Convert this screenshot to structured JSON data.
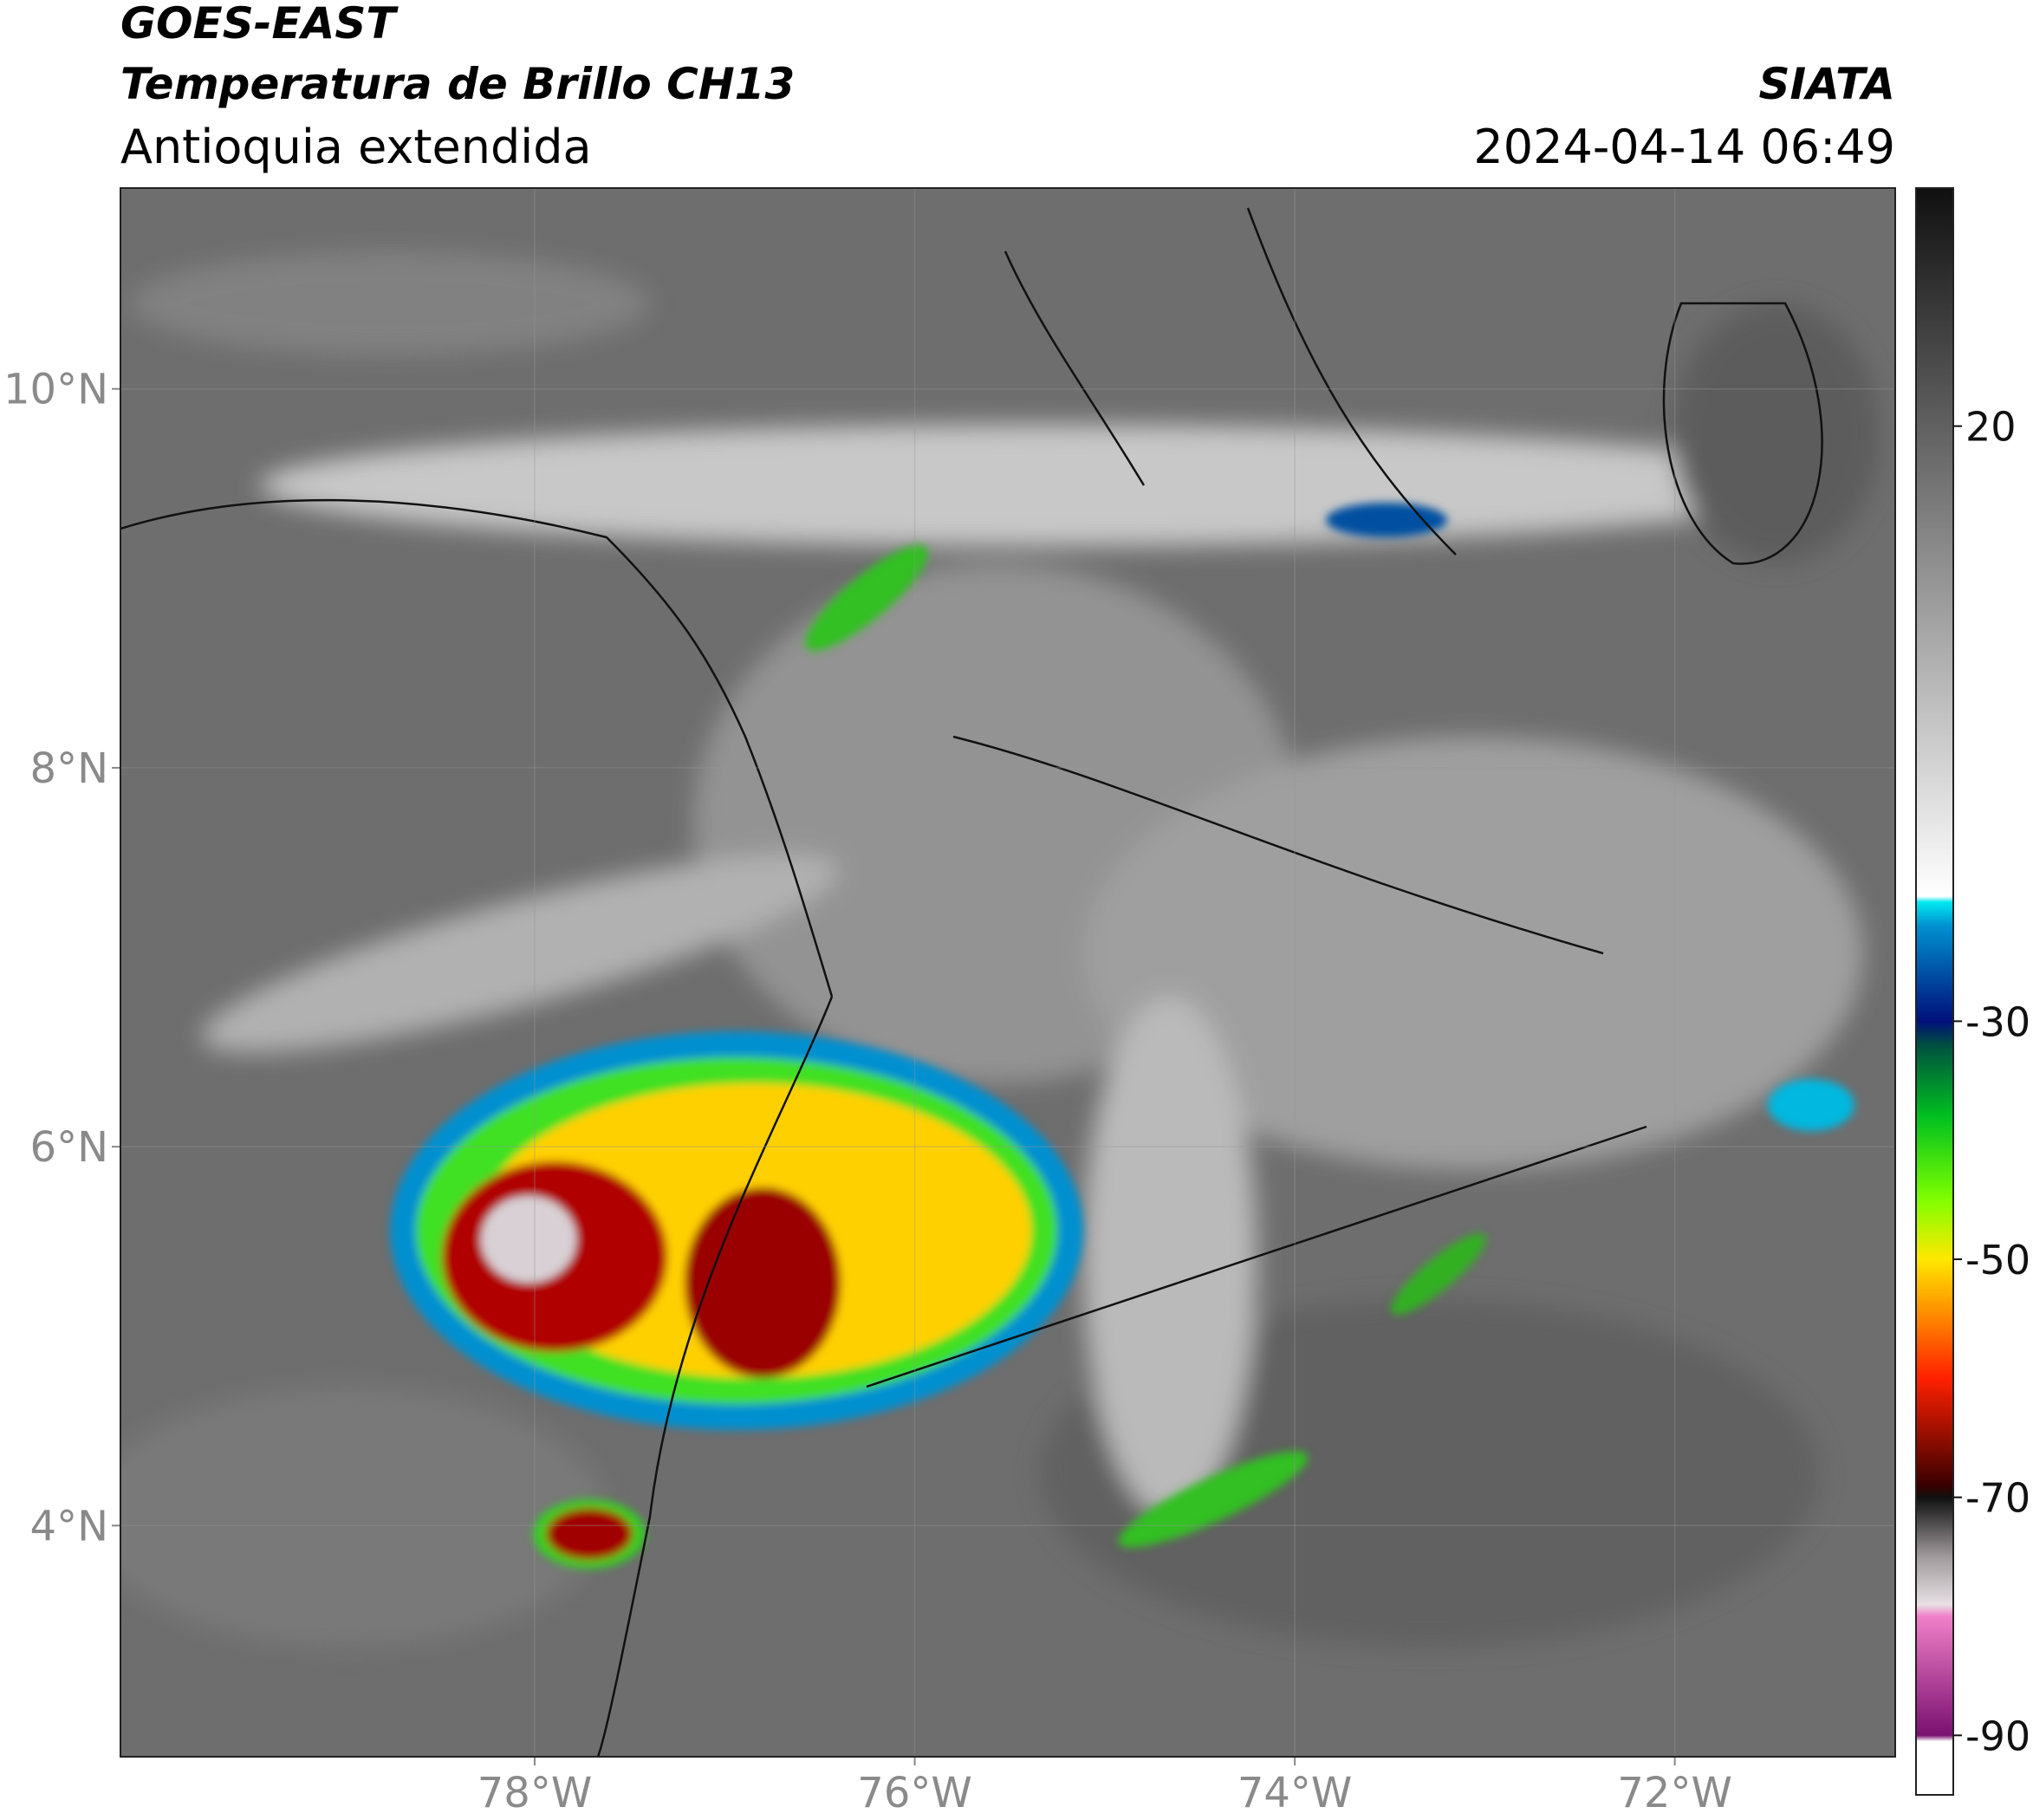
{
  "header": {
    "title_line1": "GOES-EAST",
    "title_line2": "Temperatura de Brillo CH13",
    "subtitle": "Antioquia extendida",
    "source": "SIATA",
    "datetime": "2024-04-14 06:49"
  },
  "map": {
    "xlim": [
      -80.18,
      -70.84
    ],
    "ylim": [
      2.78,
      11.06
    ],
    "grid": true,
    "xticks": [
      {
        "value": -78,
        "label": "78°W"
      },
      {
        "value": -76,
        "label": "76°W"
      },
      {
        "value": -74,
        "label": "74°W"
      },
      {
        "value": -72,
        "label": "72°W"
      }
    ],
    "yticks": [
      {
        "value": 10,
        "label": "10°N"
      },
      {
        "value": 8,
        "label": "8°N"
      },
      {
        "value": 6,
        "label": "6°N"
      },
      {
        "value": 4,
        "label": "4°N"
      }
    ]
  },
  "colorbar": {
    "ylim": [
      -95,
      40
    ],
    "yticks": [
      20,
      -30,
      -50,
      -70,
      -90
    ],
    "stops": [
      {
        "value": -95,
        "color": "#ffffff"
      },
      {
        "value": -90.5,
        "color": "#ffffff"
      },
      {
        "value": -90,
        "color": "#7a1070"
      },
      {
        "value": -80,
        "color": "#f080c8"
      },
      {
        "value": -79,
        "color": "#e8e0e4"
      },
      {
        "value": -75,
        "color": "#a09a9c"
      },
      {
        "value": -70,
        "color": "#101010"
      },
      {
        "value": -69,
        "color": "#3a0000"
      },
      {
        "value": -60,
        "color": "#ff2000"
      },
      {
        "value": -50,
        "color": "#ffe800"
      },
      {
        "value": -45,
        "color": "#80ff00"
      },
      {
        "value": -38,
        "color": "#00c020"
      },
      {
        "value": -32,
        "color": "#005040"
      },
      {
        "value": -30,
        "color": "#00107a"
      },
      {
        "value": -22,
        "color": "#0090d0"
      },
      {
        "value": -20,
        "color": "#00e8f0"
      },
      {
        "value": -19.5,
        "color": "#ffffff"
      },
      {
        "value": 40,
        "color": "#101010"
      }
    ]
  }
}
